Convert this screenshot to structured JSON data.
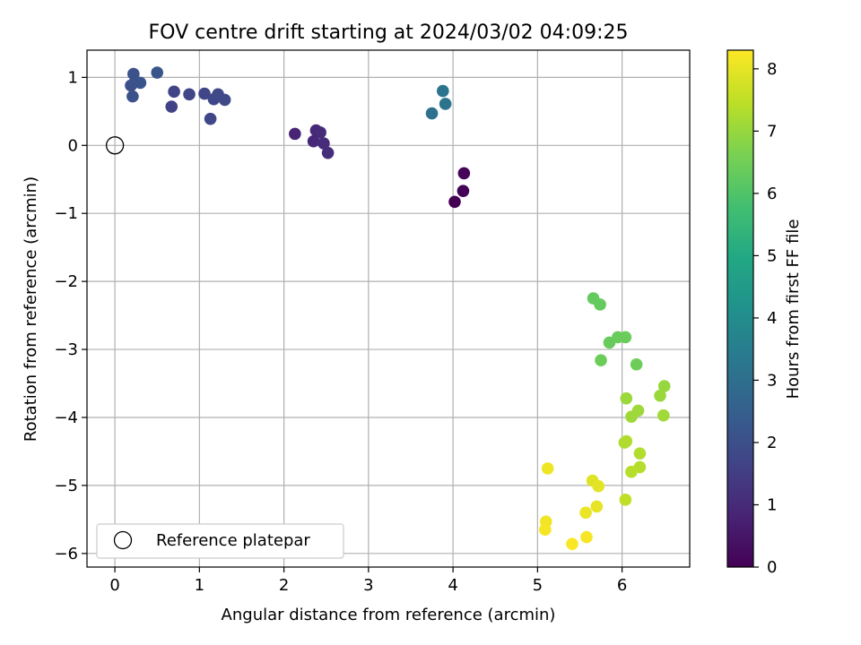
{
  "chart_data": {
    "type": "scatter",
    "title": "FOV centre drift starting at 2024/03/02 04:09:25",
    "xlabel": "Angular distance from reference (arcmin)",
    "ylabel": "Rotation from reference (arcmin)",
    "xlim": [
      -0.33,
      6.8
    ],
    "ylim": [
      -6.2,
      1.4
    ],
    "xticks": [
      0,
      1,
      2,
      3,
      4,
      5,
      6
    ],
    "xtick_labels": [
      "0",
      "1",
      "2",
      "3",
      "4",
      "5",
      "6"
    ],
    "yticks": [
      1,
      0,
      -1,
      -2,
      -3,
      -4,
      -5,
      -6
    ],
    "ytick_labels": [
      "1",
      "0",
      "−1",
      "−2",
      "−3",
      "−4",
      "−5",
      "−6"
    ],
    "grid": true,
    "reference": {
      "x": 0,
      "y": 0,
      "marker": "open-circle"
    },
    "legend": {
      "location": "lower-left",
      "label": "Reference platepar"
    },
    "colorbar": {
      "label": "Hours from first FF file",
      "range": [
        0,
        8.3
      ],
      "ticks": [
        0,
        1,
        2,
        3,
        4,
        5,
        6,
        7,
        8
      ],
      "tick_labels": [
        "0",
        "1",
        "2",
        "3",
        "4",
        "5",
        "6",
        "7",
        "8"
      ],
      "colormap": "viridis"
    },
    "points": [
      {
        "x": 4.02,
        "y": -0.83,
        "hours": 0.0
      },
      {
        "x": 4.12,
        "y": -0.67,
        "hours": 0.05
      },
      {
        "x": 4.13,
        "y": -0.41,
        "hours": 0.1
      },
      {
        "x": 2.13,
        "y": 0.17,
        "hours": 0.85
      },
      {
        "x": 2.35,
        "y": 0.06,
        "hours": 0.9
      },
      {
        "x": 2.38,
        "y": 0.22,
        "hours": 0.95
      },
      {
        "x": 2.43,
        "y": 0.19,
        "hours": 1.0
      },
      {
        "x": 2.47,
        "y": 0.03,
        "hours": 1.05
      },
      {
        "x": 2.52,
        "y": -0.11,
        "hours": 1.1
      },
      {
        "x": 0.67,
        "y": 0.57,
        "hours": 1.6
      },
      {
        "x": 0.7,
        "y": 0.79,
        "hours": 1.65
      },
      {
        "x": 0.88,
        "y": 0.75,
        "hours": 1.7
      },
      {
        "x": 1.06,
        "y": 0.76,
        "hours": 1.72
      },
      {
        "x": 1.13,
        "y": 0.39,
        "hours": 1.75
      },
      {
        "x": 1.17,
        "y": 0.68,
        "hours": 1.78
      },
      {
        "x": 1.22,
        "y": 0.75,
        "hours": 1.8
      },
      {
        "x": 1.3,
        "y": 0.67,
        "hours": 1.82
      },
      {
        "x": 0.19,
        "y": 0.88,
        "hours": 2.0
      },
      {
        "x": 0.21,
        "y": 0.72,
        "hours": 2.05
      },
      {
        "x": 0.22,
        "y": 1.05,
        "hours": 2.1
      },
      {
        "x": 0.24,
        "y": 0.94,
        "hours": 2.12
      },
      {
        "x": 0.3,
        "y": 0.92,
        "hours": 2.15
      },
      {
        "x": 0.5,
        "y": 1.07,
        "hours": 2.2
      },
      {
        "x": 3.75,
        "y": 0.47,
        "hours": 3.1
      },
      {
        "x": 3.88,
        "y": 0.8,
        "hours": 3.15
      },
      {
        "x": 3.91,
        "y": 0.61,
        "hours": 3.2
      },
      {
        "x": 5.66,
        "y": -2.25,
        "hours": 6.3
      },
      {
        "x": 5.74,
        "y": -2.34,
        "hours": 6.32
      },
      {
        "x": 5.85,
        "y": -2.9,
        "hours": 6.35
      },
      {
        "x": 5.95,
        "y": -2.82,
        "hours": 6.37
      },
      {
        "x": 6.04,
        "y": -2.82,
        "hours": 6.4
      },
      {
        "x": 5.75,
        "y": -3.16,
        "hours": 6.42
      },
      {
        "x": 6.17,
        "y": -3.22,
        "hours": 6.45
      },
      {
        "x": 6.5,
        "y": -3.54,
        "hours": 7.0
      },
      {
        "x": 6.45,
        "y": -3.68,
        "hours": 7.02
      },
      {
        "x": 6.05,
        "y": -3.72,
        "hours": 7.05
      },
      {
        "x": 6.19,
        "y": -3.9,
        "hours": 7.08
      },
      {
        "x": 6.11,
        "y": -3.99,
        "hours": 7.1
      },
      {
        "x": 6.49,
        "y": -3.97,
        "hours": 7.12
      },
      {
        "x": 6.03,
        "y": -4.37,
        "hours": 7.3
      },
      {
        "x": 6.05,
        "y": -4.35,
        "hours": 7.32
      },
      {
        "x": 6.21,
        "y": -4.53,
        "hours": 7.35
      },
      {
        "x": 6.21,
        "y": -4.73,
        "hours": 7.38
      },
      {
        "x": 6.11,
        "y": -4.8,
        "hours": 7.4
      },
      {
        "x": 6.04,
        "y": -5.21,
        "hours": 7.5
      },
      {
        "x": 5.12,
        "y": -4.75,
        "hours": 8.1
      },
      {
        "x": 5.65,
        "y": -4.93,
        "hours": 7.9
      },
      {
        "x": 5.72,
        "y": -5.01,
        "hours": 7.95
      },
      {
        "x": 5.7,
        "y": -5.31,
        "hours": 8.0
      },
      {
        "x": 5.57,
        "y": -5.4,
        "hours": 8.05
      },
      {
        "x": 5.1,
        "y": -5.53,
        "hours": 8.15
      },
      {
        "x": 5.09,
        "y": -5.65,
        "hours": 8.2
      },
      {
        "x": 5.58,
        "y": -5.76,
        "hours": 8.22
      },
      {
        "x": 5.41,
        "y": -5.86,
        "hours": 8.25
      }
    ]
  }
}
